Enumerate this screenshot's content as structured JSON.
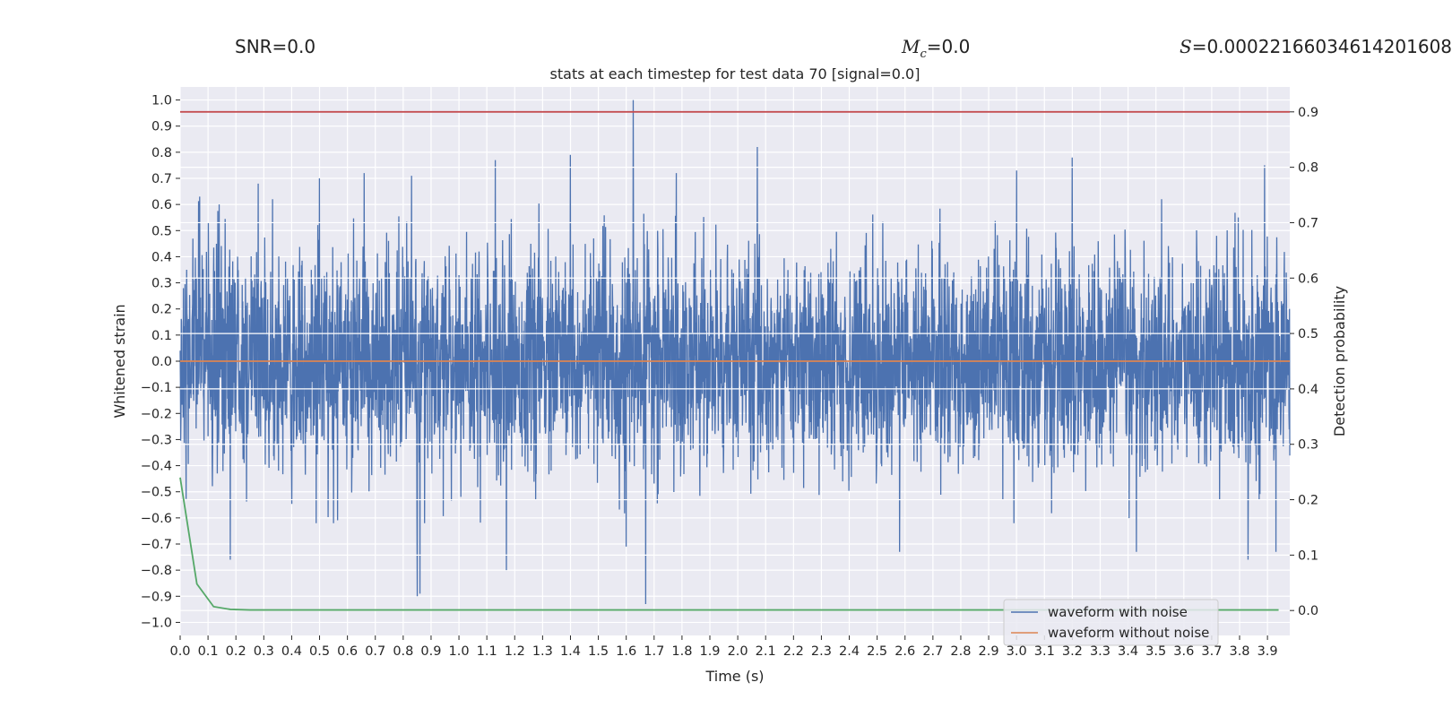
{
  "header": {
    "snr_text": "SNR=0.0",
    "mc_symbol": "M",
    "mc_subscript": "c",
    "mc_value": "=0.0",
    "s_symbol": "S",
    "s_value": "=0.00022166034614201608"
  },
  "chart_data": {
    "type": "line",
    "title": "stats at each timestep for test data 70 [signal=0.0]",
    "xlabel": "Time (s)",
    "ylabel_left": "Whitened strain",
    "ylabel_right": "Detection probability",
    "xlim": [
      0.0,
      3.98
    ],
    "ylim_left": [
      -1.05,
      1.05
    ],
    "ylim_right": [
      -0.045,
      0.945
    ],
    "x_ticks": [
      "0.0",
      "0.1",
      "0.2",
      "0.3",
      "0.4",
      "0.5",
      "0.6",
      "0.7",
      "0.8",
      "0.9",
      "1.0",
      "1.1",
      "1.2",
      "1.3",
      "1.4",
      "1.5",
      "1.6",
      "1.7",
      "1.8",
      "1.9",
      "2.0",
      "2.1",
      "2.2",
      "2.3",
      "2.4",
      "2.5",
      "2.6",
      "2.7",
      "2.8",
      "2.9",
      "3.0",
      "3.1",
      "3.2",
      "3.3",
      "3.4",
      "3.5",
      "3.6",
      "3.7",
      "3.8",
      "3.9"
    ],
    "y_ticks_left": [
      "1.0",
      "0.9",
      "0.8",
      "0.7",
      "0.6",
      "0.5",
      "0.4",
      "0.3",
      "0.2",
      "0.1",
      "0.0",
      "−0.1",
      "−0.2",
      "−0.3",
      "−0.4",
      "−0.5",
      "−0.6",
      "−0.7",
      "−0.8",
      "−0.9",
      "−1.0"
    ],
    "y_ticks_right": [
      "0.9",
      "0.8",
      "0.7",
      "0.6",
      "0.5",
      "0.4",
      "0.3",
      "0.2",
      "0.1",
      "0.0"
    ],
    "series": [
      {
        "name": "waveform with noise",
        "axis": "left",
        "color": "#4c72b0",
        "note": "dense whitened noise, peak normalized to 1.0",
        "samples": 4096,
        "peak": {
          "x": 1.625,
          "y": 1.0
        },
        "min": {
          "x": 1.67,
          "y": -0.93
        },
        "spikes": [
          {
            "x": 0.07,
            "y": 0.63
          },
          {
            "x": 0.14,
            "y": 0.6
          },
          {
            "x": 0.28,
            "y": 0.68
          },
          {
            "x": 0.5,
            "y": 0.7
          },
          {
            "x": 0.66,
            "y": 0.72
          },
          {
            "x": 0.83,
            "y": 0.71
          },
          {
            "x": 1.13,
            "y": 0.77
          },
          {
            "x": 1.4,
            "y": 0.79
          },
          {
            "x": 1.78,
            "y": 0.72
          },
          {
            "x": 2.07,
            "y": 0.82
          },
          {
            "x": 3.0,
            "y": 0.73
          },
          {
            "x": 3.2,
            "y": 0.78
          },
          {
            "x": 3.89,
            "y": 0.75
          },
          {
            "x": 0.18,
            "y": -0.76
          },
          {
            "x": 0.85,
            "y": -0.9
          },
          {
            "x": 0.86,
            "y": -0.89
          },
          {
            "x": 1.17,
            "y": -0.8
          },
          {
            "x": 1.6,
            "y": -0.71
          },
          {
            "x": 2.58,
            "y": -0.73
          },
          {
            "x": 3.43,
            "y": -0.73
          },
          {
            "x": 3.83,
            "y": -0.76
          },
          {
            "x": 3.93,
            "y": -0.73
          }
        ]
      },
      {
        "name": "waveform without noise",
        "axis": "left",
        "color": "#dd8452",
        "x": [
          0.0,
          3.98
        ],
        "y": [
          0.0,
          0.0
        ]
      },
      {
        "name": "detection probability",
        "axis": "right",
        "color": "#55a868",
        "x": [
          0.0,
          0.06,
          0.12,
          0.18,
          0.25,
          0.5,
          1.0,
          2.0,
          3.0,
          3.94
        ],
        "y": [
          0.24,
          0.048,
          0.007,
          0.002,
          0.001,
          0.001,
          0.001,
          0.001,
          0.001,
          0.001
        ]
      },
      {
        "name": "threshold",
        "axis": "right",
        "color": "#c44e52",
        "x": [
          0.0,
          3.98
        ],
        "y": [
          0.9,
          0.9
        ]
      }
    ],
    "legend": {
      "position": "lower-right",
      "entries": [
        {
          "label": "waveform with noise",
          "color": "#4c72b0"
        },
        {
          "label": "waveform without noise",
          "color": "#dd8452"
        }
      ]
    },
    "background": "#eaeaf2",
    "grid": true
  }
}
